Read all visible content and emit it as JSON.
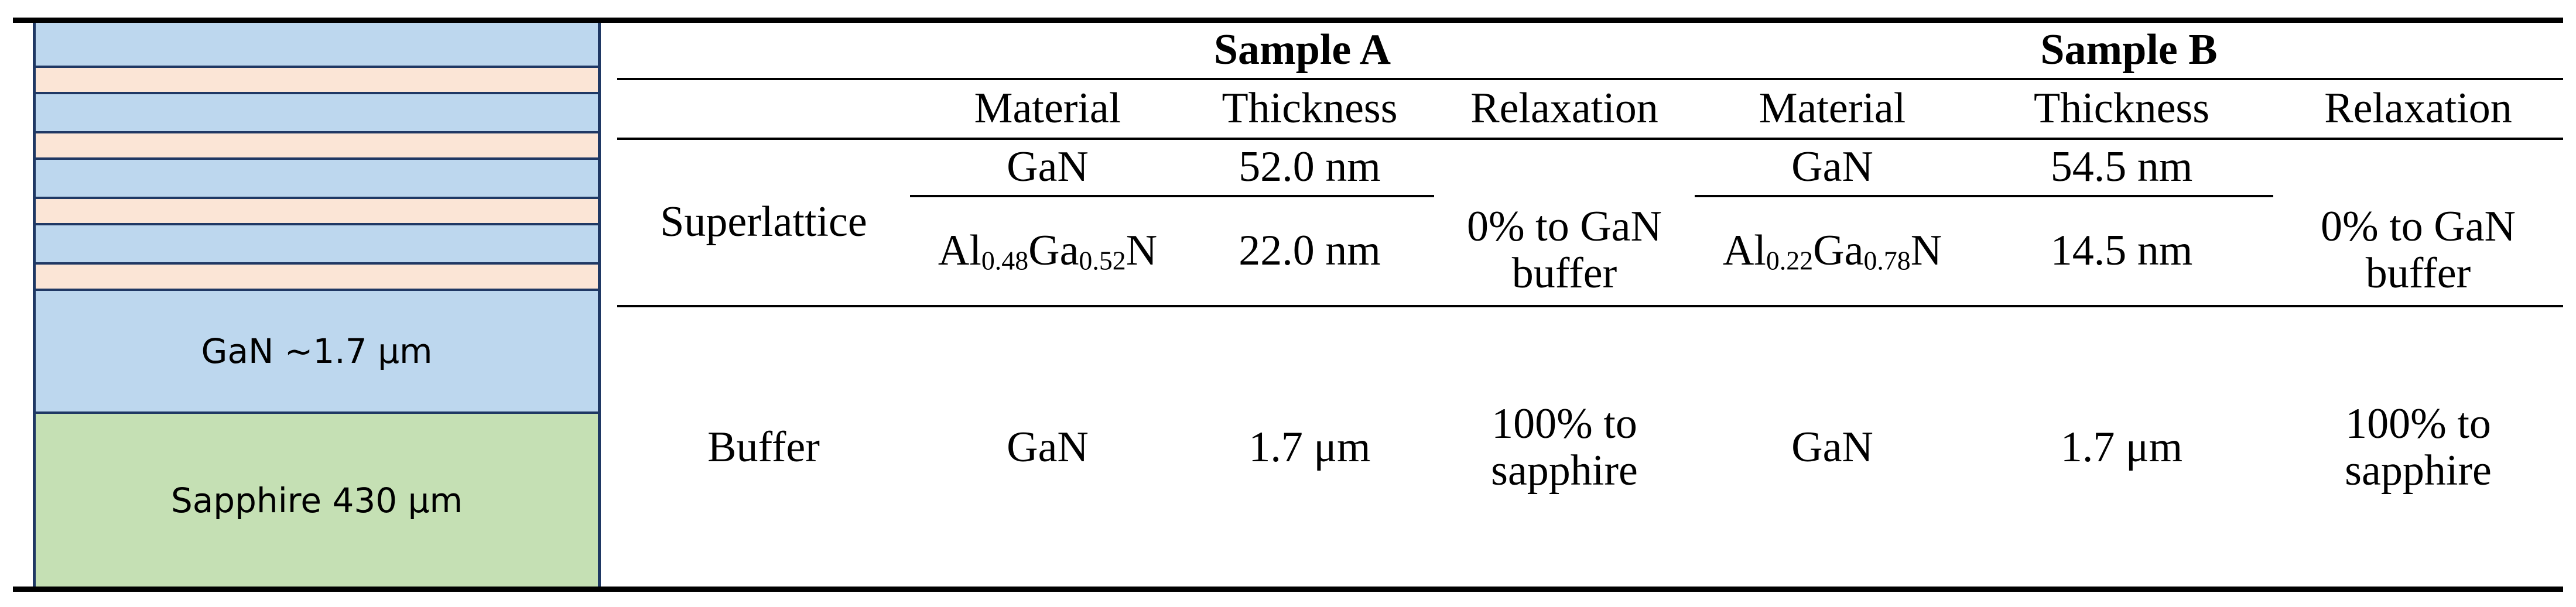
{
  "diagram": {
    "layers": [
      {
        "label": ""
      },
      {
        "label": ""
      },
      {
        "label": ""
      },
      {
        "label": ""
      },
      {
        "label": ""
      },
      {
        "label": ""
      },
      {
        "label": ""
      },
      {
        "label": ""
      },
      {
        "label": "GaN ~1.7 μm"
      },
      {
        "label": "Sapphire 430 μm"
      }
    ]
  },
  "table": {
    "sample_a": "Sample A",
    "sample_b": "Sample B",
    "columns": {
      "material": "Material",
      "thickness": "Thickness",
      "relaxation": "Relaxation"
    },
    "superlattice": {
      "label": "Superlattice",
      "row1": {
        "a_material": "GaN",
        "a_thickness": "52.0 nm",
        "b_material": "GaN",
        "b_thickness": "54.5 nm"
      },
      "row2": {
        "a_material": {
          "el1": "Al",
          "sub1": "0.48",
          "el2": "Ga",
          "sub2": "0.52",
          "el3": "N"
        },
        "a_thickness": "22.0 nm",
        "a_relaxation_line1": "0% to GaN",
        "a_relaxation_line2": "buffer",
        "b_material": {
          "el1": "Al",
          "sub1": "0.22",
          "el2": "Ga",
          "sub2": "0.78",
          "el3": "N"
        },
        "b_thickness": "14.5 nm",
        "b_relaxation_line1": "0% to GaN",
        "b_relaxation_line2": "buffer"
      }
    },
    "buffer": {
      "label": "Buffer",
      "a_material": "GaN",
      "a_thickness": "1.7 μm",
      "a_relaxation_line1": "100% to",
      "a_relaxation_line2": "sapphire",
      "b_material": "GaN",
      "b_thickness": "1.7 μm",
      "b_relaxation_line1": "100% to",
      "b_relaxation_line2": "sapphire"
    }
  }
}
